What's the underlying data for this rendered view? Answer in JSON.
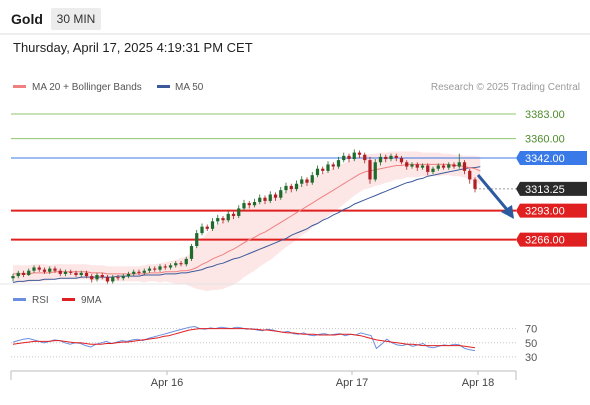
{
  "header": {
    "symbol": "Gold",
    "timeframe": "30 MIN",
    "timestamp": "Thursday, April 17, 2025 4:19:31 PM CET"
  },
  "legend": {
    "ma20_label": "MA 20 + Bollinger Bands",
    "ma50_label": "MA 50",
    "research": "Research © 2025 Trading Central"
  },
  "rsi_legend": {
    "rsi_label": "RSI",
    "ma_label": "9MA"
  },
  "colors": {
    "bull": "#1f6b2c",
    "bear": "#b11e24",
    "ma20": "#f08080",
    "ma50": "#3c5a9a",
    "band": "#fcdede",
    "resistance": "#8fc46a",
    "support": "#e02020",
    "pivot": "#3a7ae8",
    "last": "#2b2b2b",
    "rsi": "#6b8fe0",
    "rsi_ma": "#e02020",
    "arrow": "#2c5aa0"
  },
  "chart_data": [
    {
      "type": "candlestick",
      "title": "Gold 30 MIN",
      "x_ticks": [
        "Apr 16",
        "Apr 17",
        "Apr 18"
      ],
      "ylim": [
        3233,
        3396
      ],
      "levels": [
        {
          "value": 3383.0,
          "label": "3383.00",
          "role": "resistance"
        },
        {
          "value": 3360.0,
          "label": "3360.00",
          "role": "resistance"
        },
        {
          "value": 3342.0,
          "label": "3342.00",
          "role": "pivot"
        },
        {
          "value": 3313.25,
          "label": "3313.25",
          "role": "last"
        },
        {
          "value": 3293.0,
          "label": "3293.00",
          "role": "support"
        },
        {
          "value": 3266.0,
          "label": "3266.00",
          "role": "support"
        }
      ],
      "candles": [
        [
          3230,
          3232,
          3227,
          3234
        ],
        [
          3232,
          3235,
          3230,
          3237
        ],
        [
          3235,
          3233,
          3231,
          3237
        ],
        [
          3233,
          3237,
          3232,
          3239
        ],
        [
          3237,
          3240,
          3235,
          3242
        ],
        [
          3240,
          3238,
          3236,
          3242
        ],
        [
          3238,
          3236,
          3234,
          3240
        ],
        [
          3236,
          3239,
          3234,
          3241
        ],
        [
          3239,
          3237,
          3235,
          3241
        ],
        [
          3237,
          3234,
          3232,
          3239
        ],
        [
          3234,
          3236,
          3232,
          3238
        ],
        [
          3236,
          3235,
          3233,
          3238
        ],
        [
          3235,
          3233,
          3231,
          3237
        ],
        [
          3233,
          3235,
          3231,
          3237
        ],
        [
          3235,
          3232,
          3230,
          3237
        ],
        [
          3232,
          3229,
          3226,
          3234
        ],
        [
          3229,
          3233,
          3227,
          3235
        ],
        [
          3233,
          3231,
          3229,
          3235
        ],
        [
          3231,
          3227,
          3224,
          3233
        ],
        [
          3227,
          3231,
          3225,
          3233
        ],
        [
          3231,
          3230,
          3228,
          3233
        ],
        [
          3230,
          3232,
          3228,
          3234
        ],
        [
          3232,
          3234,
          3230,
          3236
        ],
        [
          3234,
          3236,
          3232,
          3238
        ],
        [
          3236,
          3235,
          3233,
          3238
        ],
        [
          3235,
          3237,
          3233,
          3239
        ],
        [
          3237,
          3239,
          3235,
          3241
        ],
        [
          3239,
          3238,
          3236,
          3241
        ],
        [
          3238,
          3241,
          3236,
          3243
        ],
        [
          3241,
          3240,
          3238,
          3243
        ],
        [
          3240,
          3242,
          3238,
          3244
        ],
        [
          3242,
          3244,
          3240,
          3246
        ],
        [
          3244,
          3243,
          3241,
          3246
        ],
        [
          3243,
          3248,
          3241,
          3250
        ],
        [
          3248,
          3260,
          3246,
          3262
        ],
        [
          3260,
          3272,
          3258,
          3275
        ],
        [
          3272,
          3278,
          3270,
          3281
        ],
        [
          3278,
          3276,
          3274,
          3280
        ],
        [
          3276,
          3283,
          3274,
          3286
        ],
        [
          3283,
          3286,
          3280,
          3289
        ],
        [
          3286,
          3284,
          3281,
          3288
        ],
        [
          3284,
          3290,
          3282,
          3293
        ],
        [
          3290,
          3288,
          3285,
          3292
        ],
        [
          3288,
          3295,
          3286,
          3298
        ],
        [
          3295,
          3300,
          3293,
          3303
        ],
        [
          3300,
          3298,
          3295,
          3302
        ],
        [
          3298,
          3301,
          3296,
          3304
        ],
        [
          3301,
          3305,
          3299,
          3308
        ],
        [
          3305,
          3302,
          3299,
          3307
        ],
        [
          3302,
          3308,
          3300,
          3311
        ],
        [
          3308,
          3305,
          3302,
          3310
        ],
        [
          3305,
          3312,
          3303,
          3315
        ],
        [
          3312,
          3316,
          3309,
          3319
        ],
        [
          3316,
          3313,
          3310,
          3318
        ],
        [
          3313,
          3318,
          3311,
          3321
        ],
        [
          3318,
          3322,
          3315,
          3325
        ],
        [
          3322,
          3319,
          3316,
          3324
        ],
        [
          3319,
          3326,
          3317,
          3329
        ],
        [
          3326,
          3332,
          3324,
          3335
        ],
        [
          3332,
          3330,
          3327,
          3334
        ],
        [
          3330,
          3336,
          3328,
          3339
        ],
        [
          3336,
          3334,
          3331,
          3338
        ],
        [
          3334,
          3340,
          3332,
          3343
        ],
        [
          3340,
          3344,
          3338,
          3347
        ],
        [
          3344,
          3341,
          3338,
          3346
        ],
        [
          3341,
          3347,
          3339,
          3350
        ],
        [
          3347,
          3345,
          3342,
          3349
        ],
        [
          3345,
          3340,
          3337,
          3347
        ],
        [
          3340,
          3322,
          3318,
          3343
        ],
        [
          3322,
          3338,
          3320,
          3341
        ],
        [
          3338,
          3343,
          3335,
          3346
        ],
        [
          3343,
          3341,
          3338,
          3345
        ],
        [
          3341,
          3344,
          3339,
          3346
        ],
        [
          3344,
          3342,
          3339,
          3346
        ],
        [
          3342,
          3338,
          3336,
          3344
        ],
        [
          3338,
          3334,
          3331,
          3340
        ],
        [
          3334,
          3336,
          3332,
          3338
        ],
        [
          3336,
          3333,
          3330,
          3338
        ],
        [
          3333,
          3335,
          3331,
          3337
        ],
        [
          3335,
          3329,
          3326,
          3337
        ],
        [
          3329,
          3332,
          3327,
          3334
        ],
        [
          3332,
          3335,
          3330,
          3337
        ],
        [
          3335,
          3333,
          3331,
          3337
        ],
        [
          3333,
          3336,
          3331,
          3338
        ],
        [
          3336,
          3334,
          3332,
          3338
        ],
        [
          3334,
          3338,
          3332,
          3346
        ],
        [
          3338,
          3330,
          3327,
          3340
        ],
        [
          3330,
          3322,
          3318,
          3332
        ],
        [
          3322,
          3313.25,
          3310,
          3324
        ]
      ],
      "ma20": [
        3234,
        3234,
        3234,
        3234,
        3235,
        3235,
        3235,
        3235,
        3236,
        3236,
        3236,
        3236,
        3236,
        3236,
        3236,
        3235,
        3235,
        3235,
        3234,
        3234,
        3234,
        3234,
        3234,
        3234,
        3234,
        3234,
        3235,
        3235,
        3235,
        3236,
        3236,
        3236,
        3237,
        3237,
        3238,
        3240,
        3243,
        3245,
        3248,
        3250,
        3252,
        3255,
        3257,
        3260,
        3263,
        3266,
        3268,
        3271,
        3273,
        3276,
        3279,
        3282,
        3285,
        3288,
        3291,
        3294,
        3297,
        3300,
        3303,
        3306,
        3309,
        3312,
        3315,
        3318,
        3321,
        3324,
        3327,
        3329,
        3330,
        3331,
        3332,
        3333,
        3334,
        3335,
        3335,
        3336,
        3336,
        3336,
        3336,
        3336,
        3336,
        3336,
        3336,
        3336,
        3335,
        3335,
        3334,
        3333,
        3332,
        3330
      ],
      "ma50": [
        3226,
        3227,
        3227,
        3228,
        3228,
        3228,
        3229,
        3229,
        3229,
        3230,
        3230,
        3230,
        3230,
        3231,
        3231,
        3231,
        3231,
        3231,
        3231,
        3231,
        3232,
        3232,
        3232,
        3232,
        3232,
        3233,
        3233,
        3233,
        3233,
        3234,
        3234,
        3234,
        3235,
        3235,
        3236,
        3237,
        3238,
        3240,
        3241,
        3243,
        3244,
        3246,
        3248,
        3249,
        3251,
        3253,
        3255,
        3257,
        3259,
        3261,
        3263,
        3265,
        3267,
        3270,
        3272,
        3274,
        3276,
        3279,
        3281,
        3284,
        3286,
        3289,
        3291,
        3294,
        3296,
        3299,
        3301,
        3303,
        3305,
        3307,
        3309,
        3311,
        3313,
        3315,
        3317,
        3319,
        3320,
        3322,
        3323,
        3325,
        3326,
        3327,
        3328,
        3329,
        3330,
        3331,
        3332,
        3333,
        3333,
        3334
      ],
      "bb_width": [
        8,
        8,
        8,
        8,
        8,
        8,
        8,
        7,
        7,
        7,
        7,
        7,
        7,
        7,
        7,
        7,
        7,
        7,
        7,
        7,
        7,
        7,
        7,
        7,
        7,
        8,
        8,
        8,
        9,
        9,
        10,
        11,
        12,
        13,
        16,
        20,
        24,
        27,
        29,
        31,
        32,
        33,
        33,
        33,
        32,
        32,
        31,
        30,
        29,
        29,
        28,
        27,
        26,
        26,
        25,
        24,
        24,
        23,
        22,
        22,
        21,
        21,
        20,
        19,
        18,
        17,
        17,
        16,
        16,
        15,
        15,
        14,
        14,
        13,
        13,
        12,
        12,
        12,
        11,
        11,
        11,
        11,
        10,
        10,
        10,
        10,
        10,
        11,
        12,
        13
      ]
    },
    {
      "type": "line",
      "title": "RSI",
      "ylim": [
        20,
        85
      ],
      "y_ticks": [
        "70",
        "50",
        "30"
      ],
      "series": [
        {
          "name": "RSI",
          "values": [
            51,
            53,
            55,
            56,
            54,
            52,
            50,
            52,
            54,
            53,
            50,
            48,
            50,
            49,
            46,
            44,
            48,
            50,
            52,
            49,
            51,
            53,
            52,
            54,
            55,
            53,
            56,
            58,
            60,
            62,
            64,
            66,
            68,
            70,
            72,
            73,
            70,
            69,
            71,
            70,
            72,
            71,
            70,
            72,
            71,
            69,
            70,
            68,
            67,
            69,
            68,
            66,
            65,
            66,
            63,
            62,
            64,
            61,
            60,
            62,
            63,
            61,
            62,
            63,
            60,
            62,
            61,
            64,
            62,
            60,
            42,
            48,
            55,
            50,
            47,
            46,
            48,
            45,
            47,
            49,
            44,
            43,
            45,
            47,
            46,
            48,
            47,
            42,
            40,
            39
          ]
        },
        {
          "name": "9MA",
          "values": [
            48,
            49,
            50,
            51,
            52,
            52,
            52,
            52,
            53,
            53,
            52,
            51,
            50,
            50,
            49,
            48,
            48,
            48,
            49,
            49,
            50,
            51,
            51,
            52,
            53,
            54,
            55,
            56,
            57,
            59,
            60,
            62,
            64,
            66,
            68,
            69,
            70,
            70,
            70,
            70,
            70,
            70,
            70,
            70,
            70,
            70,
            69,
            69,
            68,
            68,
            67,
            66,
            65,
            64,
            64,
            63,
            62,
            62,
            62,
            61,
            61,
            61,
            61,
            62,
            62,
            62,
            61,
            60,
            58,
            56,
            54,
            53,
            52,
            51,
            50,
            49,
            48,
            48,
            47,
            46,
            46,
            46,
            46,
            46,
            46,
            46,
            46,
            45,
            44,
            43
          ]
        }
      ]
    }
  ]
}
